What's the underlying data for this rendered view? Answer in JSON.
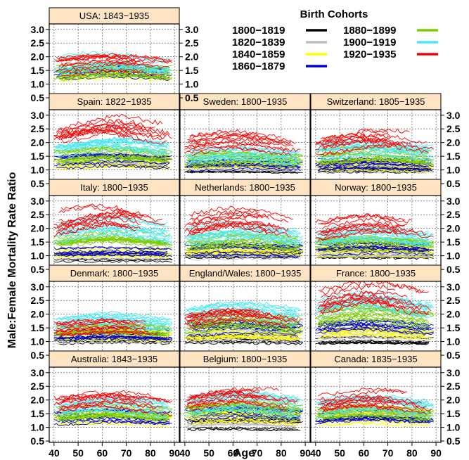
{
  "chart_data": {
    "type": "line",
    "xlabel": "Age",
    "ylabel": "Male:Female Mortality Rate Ratio",
    "xlim": [
      38,
      92
    ],
    "ylim": [
      0.45,
      3.2
    ],
    "x_ticks": [
      40,
      50,
      60,
      70,
      80,
      90
    ],
    "y_ticks": [
      0.5,
      1.0,
      1.5,
      2.0,
      2.5,
      3.0
    ],
    "x_tick_labels": [
      "40",
      "50",
      "60",
      "70",
      "80",
      "90"
    ],
    "y_tick_labels": [
      "0.5",
      "1.0",
      "1.5",
      "2.0",
      "2.5",
      "3.0"
    ],
    "grid": true,
    "legend": {
      "title": "Birth Cohorts",
      "placement": "top-right",
      "entries": [
        {
          "label": "1800−1819",
          "color": "#000000"
        },
        {
          "label": "1820−1839",
          "color": "#bebebe"
        },
        {
          "label": "1840−1859",
          "color": "#ffff00"
        },
        {
          "label": "1860−1879",
          "color": "#0000cd"
        },
        {
          "label": "1880−1899",
          "color": "#7ccd00"
        },
        {
          "label": "1900−1919",
          "color": "#4ee8f0"
        },
        {
          "label": "1920−1935",
          "color": "#ff0000"
        }
      ]
    },
    "panels": [
      {
        "label": "USA: 1843−1935",
        "row": 0,
        "col": 0,
        "cohort_levels": [
          null,
          null,
          1.35,
          1.35,
          1.45,
          1.7,
          1.65
        ]
      },
      {
        "label": "Spain: 1822−1935",
        "row": 1,
        "col": 0,
        "cohort_levels": [
          null,
          1.3,
          1.25,
          1.3,
          1.5,
          1.8,
          2.3
        ]
      },
      {
        "label": "Sweden: 1800−1935",
        "row": 1,
        "col": 1,
        "cohort_levels": [
          1.05,
          1.1,
          1.15,
          1.2,
          1.35,
          1.5,
          1.9
        ]
      },
      {
        "label": "Switzerland: 1805−1935",
        "row": 1,
        "col": 2,
        "cohort_levels": [
          1.0,
          1.1,
          1.15,
          1.2,
          1.5,
          1.7,
          2.0
        ]
      },
      {
        "label": "Italy: 1800−1935",
        "row": 2,
        "col": 0,
        "cohort_levels": [
          0.95,
          1.0,
          1.1,
          1.15,
          1.6,
          1.9,
          2.25
        ]
      },
      {
        "label": "Netherlands: 1800−1935",
        "row": 2,
        "col": 1,
        "cohort_levels": [
          1.0,
          1.05,
          1.15,
          1.2,
          1.5,
          1.8,
          2.15
        ]
      },
      {
        "label": "Norway: 1800−1935",
        "row": 2,
        "col": 2,
        "cohort_levels": [
          1.05,
          1.1,
          1.15,
          1.25,
          1.4,
          1.7,
          2.0
        ]
      },
      {
        "label": "Denmark: 1800−1935",
        "row": 3,
        "col": 0,
        "cohort_levels": [
          1.1,
          1.15,
          1.2,
          1.25,
          1.4,
          1.65,
          1.5
        ]
      },
      {
        "label": "England/Wales: 1800−1935",
        "row": 3,
        "col": 1,
        "cohort_levels": [
          1.1,
          1.2,
          1.3,
          1.45,
          1.7,
          1.9,
          1.8
        ]
      },
      {
        "label": "France: 1800−1935",
        "row": 3,
        "col": 2,
        "cohort_levels": [
          1.1,
          1.2,
          1.4,
          1.5,
          1.9,
          2.2,
          2.5
        ]
      },
      {
        "label": "Australia: 1843−1935",
        "row": 4,
        "col": 0,
        "cohort_levels": [
          null,
          null,
          1.3,
          1.35,
          1.5,
          1.75,
          1.85
        ]
      },
      {
        "label": "Belgium: 1800−1935",
        "row": 4,
        "col": 1,
        "cohort_levels": [
          1.1,
          1.2,
          1.35,
          1.45,
          1.6,
          1.8,
          1.95
        ]
      },
      {
        "label": "Canada: 1835−1935",
        "row": 4,
        "col": 2,
        "cohort_levels": [
          null,
          1.3,
          1.3,
          1.4,
          1.5,
          1.75,
          1.9
        ]
      }
    ]
  }
}
